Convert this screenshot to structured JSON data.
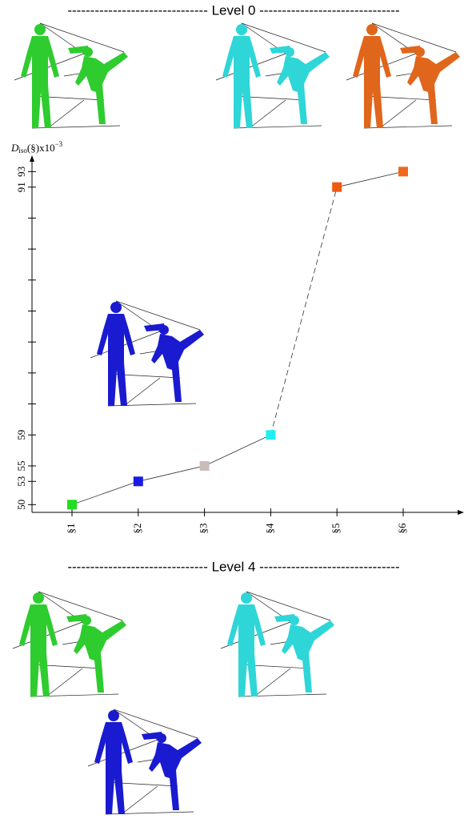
{
  "level_headers": [
    "------------------------------- Level 0 -------------------------------",
    "------------------------------- Level 4 -------------------------------"
  ],
  "chart_data": {
    "type": "line",
    "ylabel": {
      "symbol": "D",
      "subscript": "iso",
      "body": "(§)x10",
      "exponent": "−3"
    },
    "categories": [
      "§1",
      "§2",
      "§3",
      "§4",
      "§5",
      "§6"
    ],
    "series": [
      {
        "values": [
          50,
          53,
          55,
          59,
          91,
          93
        ],
        "colors": [
          "#22dd22",
          "#1a1ae6",
          "#cbbcbc",
          "#22eef0",
          "#ee5a10",
          "#ee6a1a"
        ],
        "line_color": "#333333"
      }
    ],
    "dashed_segments": [
      3
    ],
    "ylim": [
      49,
      95
    ],
    "yticks": [
      50,
      53,
      55,
      59,
      91,
      93
    ],
    "minor_yticks": [
      63,
      67,
      71,
      75,
      79,
      83,
      87
    ]
  }
}
